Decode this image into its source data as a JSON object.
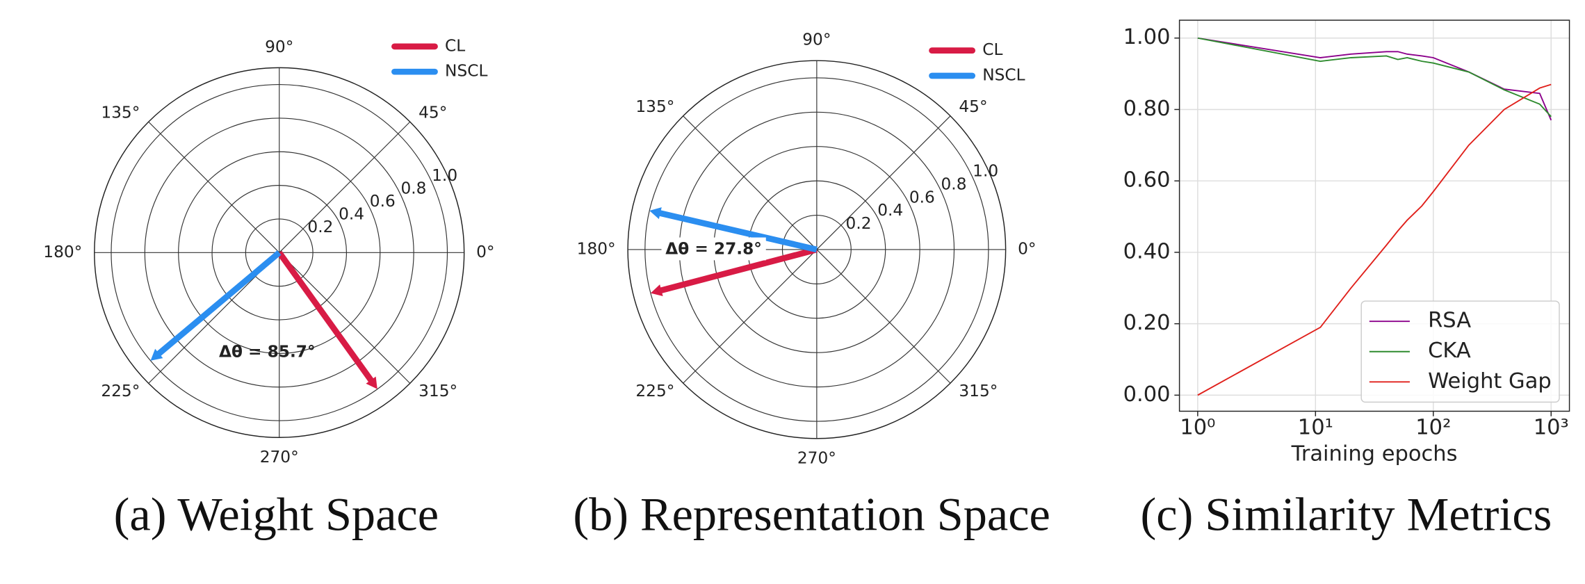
{
  "chart_data": [
    {
      "type": "polar",
      "caption": "(a) Weight Space",
      "annotation": "Δθ = 85.7°",
      "rlim": [
        0,
        1.1
      ],
      "rticks": [
        0.2,
        0.4,
        0.6,
        0.8,
        {
          "value": 1.0,
          "label": "1.0"
        }
      ],
      "thetaticks": [
        {
          "value": 0,
          "label": "0°"
        },
        {
          "value": 45,
          "label": "45°"
        },
        {
          "value": 90,
          "label": "90°"
        },
        {
          "value": 135,
          "label": "135°"
        },
        {
          "value": 180,
          "label": "180°"
        },
        {
          "value": 225,
          "label": "225°"
        },
        {
          "value": 270,
          "label": "270°"
        },
        {
          "value": 315,
          "label": "315°"
        }
      ],
      "legend": "upper right",
      "series": [
        {
          "name": "CL",
          "color": "#d81b45",
          "theta": [
            305.7
          ],
          "r": [
            1.0
          ]
        },
        {
          "name": "NSCL",
          "color": "#2b8ef0",
          "theta": [
            220.0
          ],
          "r": [
            1.0
          ]
        }
      ]
    },
    {
      "type": "polar",
      "caption": "(b) Representation Space",
      "annotation": "Δθ = 27.8°",
      "rlim": [
        0,
        1.1
      ],
      "rticks": [
        0.2,
        0.4,
        0.6,
        0.8,
        {
          "value": 1.0,
          "label": "1.0"
        }
      ],
      "thetaticks": [
        {
          "value": 0,
          "label": "0°"
        },
        {
          "value": 45,
          "label": "45°"
        },
        {
          "value": 90,
          "label": "90°"
        },
        {
          "value": 135,
          "label": "135°"
        },
        {
          "value": 180,
          "label": "180°"
        },
        {
          "value": 225,
          "label": "225°"
        },
        {
          "value": 270,
          "label": "270°"
        },
        {
          "value": 315,
          "label": "315°"
        }
      ],
      "legend": "upper right",
      "series": [
        {
          "name": "CL",
          "color": "#d81b45",
          "theta": [
            194.7
          ],
          "r": [
            1.0
          ]
        },
        {
          "name": "NSCL",
          "color": "#2b8ef0",
          "theta": [
            166.9
          ],
          "r": [
            1.0
          ]
        }
      ]
    },
    {
      "type": "line",
      "caption": "(c) Similarity Metrics",
      "x_label": "Training epochs",
      "xscale": "log",
      "xlim": [
        0.7,
        1430
      ],
      "ylim": [
        -0.045,
        1.05
      ],
      "grid": true,
      "legend": "lower right",
      "xticks": [
        {
          "value": 1,
          "label": "10⁰"
        },
        {
          "value": 10,
          "label": "10¹"
        },
        {
          "value": 100,
          "label": "10²"
        },
        {
          "value": 1000,
          "label": "10³"
        }
      ],
      "yticks": [
        {
          "value": 0,
          "label": "0.00"
        },
        {
          "value": 0.2,
          "label": "0.20"
        },
        {
          "value": 0.4,
          "label": "0.40"
        },
        {
          "value": 0.6,
          "label": "0.60"
        },
        {
          "value": 0.8,
          "label": "0.80"
        },
        {
          "value": 1.0,
          "label": "1.00"
        }
      ],
      "x": [
        1,
        11,
        20,
        40,
        50,
        60,
        80,
        100,
        200,
        400,
        800,
        1000
      ],
      "series": [
        {
          "name": "RSA",
          "color": "#8b008b",
          "values": [
            1.0,
            0.945,
            0.955,
            0.962,
            0.962,
            0.955,
            0.95,
            0.945,
            0.905,
            0.857,
            0.845,
            0.77
          ]
        },
        {
          "name": "CKA",
          "color": "#2e8b2e",
          "values": [
            1.0,
            0.935,
            0.945,
            0.95,
            0.94,
            0.945,
            0.935,
            0.93,
            0.905,
            0.855,
            0.815,
            0.78
          ]
        },
        {
          "name": "Weight Gap",
          "color": "#e0201b",
          "values": [
            0,
            0.19,
            0.3,
            0.42,
            0.46,
            0.49,
            0.53,
            0.57,
            0.7,
            0.8,
            0.86,
            0.87
          ]
        }
      ]
    }
  ]
}
